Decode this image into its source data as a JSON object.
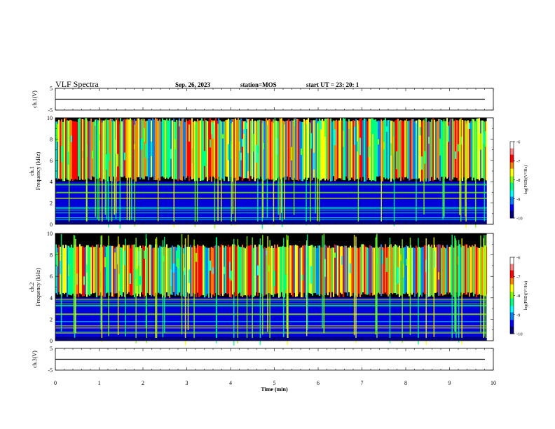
{
  "header": {
    "title": "VLF Spectra",
    "date": "Sep. 26, 2023",
    "station": "station=MOS",
    "start_ut": "start UT = 23: 20: 1"
  },
  "colors": {
    "colormap": [
      "#000080",
      "#0000ff",
      "#0080ff",
      "#00ffff",
      "#00ff80",
      "#80ff00",
      "#ffff00",
      "#ff8000",
      "#ff0000",
      "#ff8080",
      "#ffffff"
    ],
    "background": "#000000",
    "trace": "#000000"
  },
  "chart_data": [
    {
      "type": "line",
      "name": "ch1-waveform",
      "ylabel": "ch.1(V)",
      "ylim": [
        -5,
        5
      ],
      "y_ticks": [
        "5",
        "-5"
      ],
      "xlim": [
        0,
        10
      ],
      "values": [
        0
      ]
    },
    {
      "type": "heatmap",
      "name": "ch1-spectrogram",
      "ylabel_channel": "ch.1",
      "ylabel": "Frequency (kHz)",
      "ylim": [
        0,
        10
      ],
      "y_ticks": [
        "0",
        "2",
        "4",
        "6",
        "8",
        "10"
      ],
      "xlim": [
        0,
        10
      ],
      "data_end_min": 9.85,
      "band_khz": [
        4,
        10
      ],
      "colorbar": {
        "label": "log(PSD)(V²/Hz)",
        "range": [
          -10,
          -6
        ],
        "ticks": [
          "-6",
          "-7",
          "-8",
          "-9",
          "-10"
        ]
      }
    },
    {
      "type": "heatmap",
      "name": "ch2-spectrogram",
      "ylabel_channel": "ch.2",
      "ylabel": "Frequency (kHz)",
      "ylim": [
        0,
        10
      ],
      "y_ticks": [
        "0",
        "2",
        "4",
        "6",
        "8",
        "10"
      ],
      "xlim": [
        0,
        10
      ],
      "data_end_min": 9.85,
      "band_khz": [
        4,
        9
      ],
      "colorbar": {
        "label": "log(PSD)(V²/Hz)",
        "range": [
          -10,
          -6
        ],
        "ticks": [
          "-6",
          "-7",
          "-8",
          "-9",
          "-10"
        ]
      }
    },
    {
      "type": "line",
      "name": "ch3-waveform",
      "ylabel": "ch.3(V)",
      "ylim": [
        -5,
        5
      ],
      "y_ticks": [
        "5",
        "-5"
      ],
      "xlim": [
        0,
        10
      ],
      "values": [
        0
      ]
    }
  ],
  "x_axis": {
    "label": "Time (min)",
    "ticks": [
      "0",
      "1",
      "2",
      "3",
      "4",
      "5",
      "6",
      "7",
      "8",
      "9",
      "10"
    ]
  }
}
